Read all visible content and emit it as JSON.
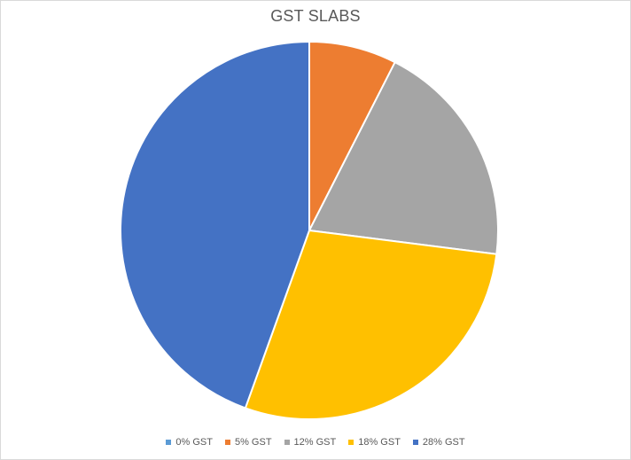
{
  "chart_data": {
    "type": "pie",
    "title": "GST SLABS",
    "categories": [
      "0% GST",
      "5% GST",
      "12% GST",
      "18% GST",
      "28% GST"
    ],
    "values": [
      0,
      7.5,
      19.5,
      28.5,
      44.5
    ],
    "colors": [
      "#5B9BD5",
      "#ED7D31",
      "#A5A5A5",
      "#FFC000",
      "#4472C4"
    ],
    "start_angle_deg": 0,
    "direction": "clockwise",
    "legend": "bottom"
  }
}
